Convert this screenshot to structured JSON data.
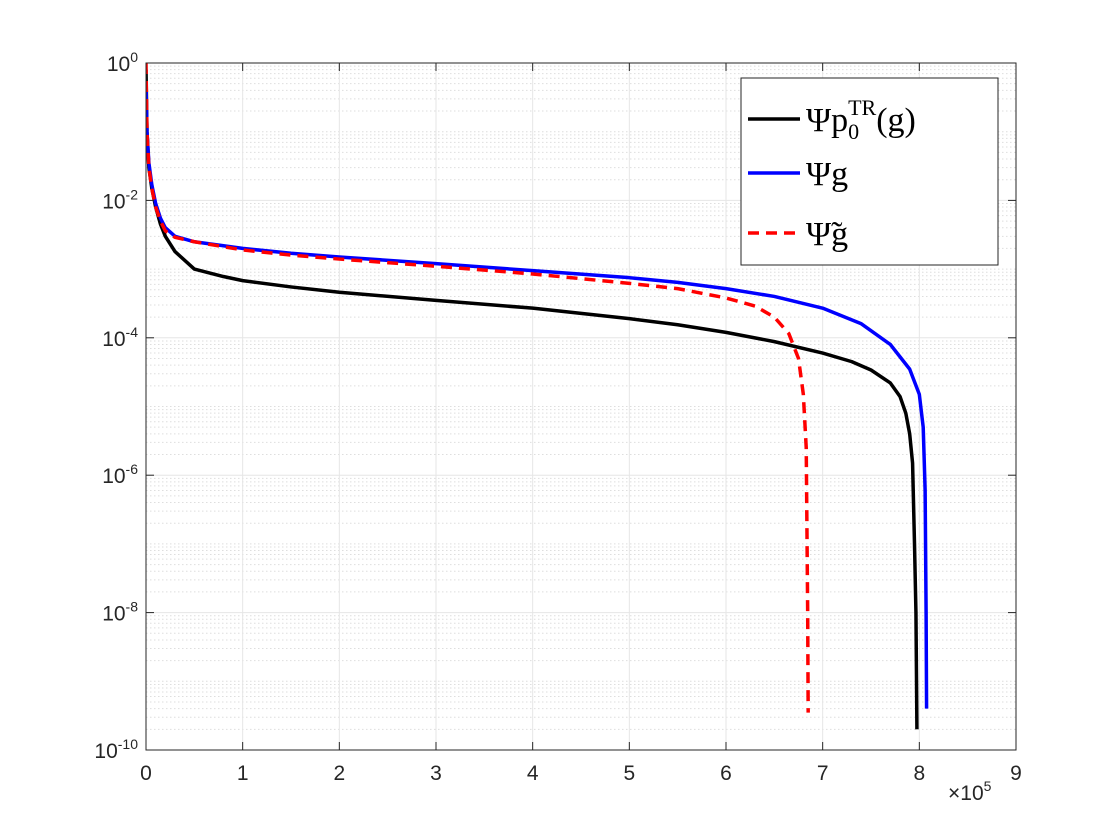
{
  "chart_data": {
    "type": "line",
    "title": "",
    "xlabel": "",
    "ylabel": "",
    "xlim": [
      0,
      900000
    ],
    "ylim": [
      1e-10,
      1
    ],
    "yscale": "log",
    "grid": true,
    "minor_grid": true,
    "legend_position": "top-right",
    "x_ticks": [
      {
        "value": 0,
        "label": "0"
      },
      {
        "value": 100000,
        "label": "1"
      },
      {
        "value": 200000,
        "label": "2"
      },
      {
        "value": 300000,
        "label": "3"
      },
      {
        "value": 400000,
        "label": "4"
      },
      {
        "value": 500000,
        "label": "5"
      },
      {
        "value": 600000,
        "label": "6"
      },
      {
        "value": 700000,
        "label": "7"
      },
      {
        "value": 800000,
        "label": "8"
      },
      {
        "value": 900000,
        "label": "9"
      }
    ],
    "x_multiplier": {
      "base": "×10",
      "exponent": "5"
    },
    "y_ticks": [
      {
        "value": 1,
        "base": "10",
        "exponent": "0"
      },
      {
        "value": 0.01,
        "base": "10",
        "exponent": "-2"
      },
      {
        "value": 0.0001,
        "base": "10",
        "exponent": "-4"
      },
      {
        "value": 1e-06,
        "base": "10",
        "exponent": "-6"
      },
      {
        "value": 1e-08,
        "base": "10",
        "exponent": "-8"
      },
      {
        "value": 1e-10,
        "base": "10",
        "exponent": "-10"
      }
    ],
    "series": [
      {
        "name": "Ψp0TR(g)",
        "color": "#000000",
        "dash": "solid",
        "x": [
          0,
          1000,
          3000,
          6000,
          10000,
          15000,
          20000,
          30000,
          50000,
          80000,
          100000,
          150000,
          200000,
          300000,
          400000,
          500000,
          550000,
          600000,
          650000,
          700000,
          730000,
          750000,
          770000,
          780000,
          786000,
          790000,
          793000,
          795000,
          796500,
          797500
        ],
        "y": [
          0.8,
          0.1,
          0.03,
          0.015,
          0.008,
          0.0045,
          0.003,
          0.0018,
          0.001,
          0.00078,
          0.00068,
          0.00055,
          0.00046,
          0.00035,
          0.00027,
          0.00019,
          0.000155,
          0.00012,
          8.8e-05,
          6e-05,
          4.5e-05,
          3.4e-05,
          2.2e-05,
          1.4e-05,
          8e-06,
          4e-06,
          1.5e-06,
          1e-07,
          1e-08,
          2e-10
        ]
      },
      {
        "name": "Ψg",
        "color": "#0000ff",
        "dash": "solid",
        "x": [
          0,
          1000,
          3000,
          6000,
          10000,
          15000,
          20000,
          30000,
          50000,
          100000,
          150000,
          200000,
          300000,
          400000,
          500000,
          550000,
          600000,
          650000,
          700000,
          740000,
          770000,
          790000,
          800000,
          804000,
          806000,
          807000,
          807500
        ],
        "y": [
          0.5,
          0.1,
          0.035,
          0.017,
          0.009,
          0.0055,
          0.004,
          0.003,
          0.0025,
          0.002,
          0.0017,
          0.0015,
          0.0012,
          0.00095,
          0.00075,
          0.00064,
          0.00052,
          0.0004,
          0.00027,
          0.00016,
          8e-05,
          3.5e-05,
          1.5e-05,
          5e-06,
          6e-07,
          1e-08,
          4e-10
        ]
      },
      {
        "name": "Ψ̃g",
        "color": "#ff0000",
        "dash": "dashed",
        "x": [
          0,
          1000,
          3000,
          6000,
          10000,
          15000,
          20000,
          30000,
          50000,
          100000,
          150000,
          200000,
          300000,
          400000,
          500000,
          550000,
          600000,
          630000,
          650000,
          665000,
          675000,
          680000,
          683000,
          684500,
          685000
        ],
        "y": [
          1.0,
          0.1,
          0.03,
          0.015,
          0.008,
          0.005,
          0.0036,
          0.0029,
          0.0025,
          0.0019,
          0.0016,
          0.0014,
          0.0011,
          0.00085,
          0.00062,
          0.00052,
          0.00038,
          0.00029,
          0.0002,
          0.000115,
          5e-05,
          1.5e-05,
          2.5e-06,
          1e-08,
          3.5e-10
        ]
      }
    ]
  },
  "legend": {
    "items": [
      {
        "main": "Ψp",
        "sub": "0",
        "sup": "TR",
        "tail": "(g)"
      },
      {
        "main": "Ψg"
      },
      {
        "main": "Ψ̃g"
      }
    ]
  }
}
